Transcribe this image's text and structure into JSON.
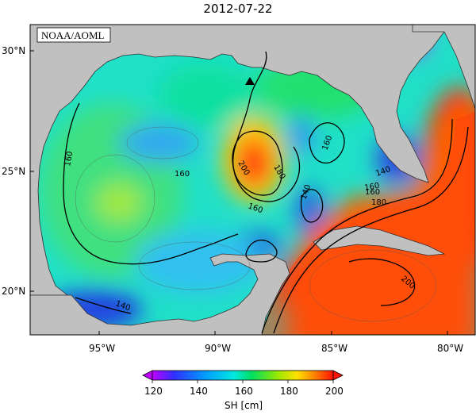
{
  "title": "2012-07-22",
  "credit": "NOAA/AOML",
  "axes": {
    "lat_ticks": [
      "30°N",
      "25°N",
      "20°N"
    ],
    "lon_ticks": [
      "95°W",
      "90°W",
      "85°W",
      "80°W"
    ]
  },
  "contour_labels": [
    "160",
    "160",
    "160",
    "200",
    "180",
    "160",
    "160",
    "140",
    "140",
    "160",
    "180",
    "200",
    "140"
  ],
  "colorbar": {
    "label": "SH [cm]",
    "ticks": [
      "120",
      "140",
      "160",
      "180",
      "200"
    ],
    "min": 120,
    "max": 200
  },
  "marker": "buoy-triangle"
}
